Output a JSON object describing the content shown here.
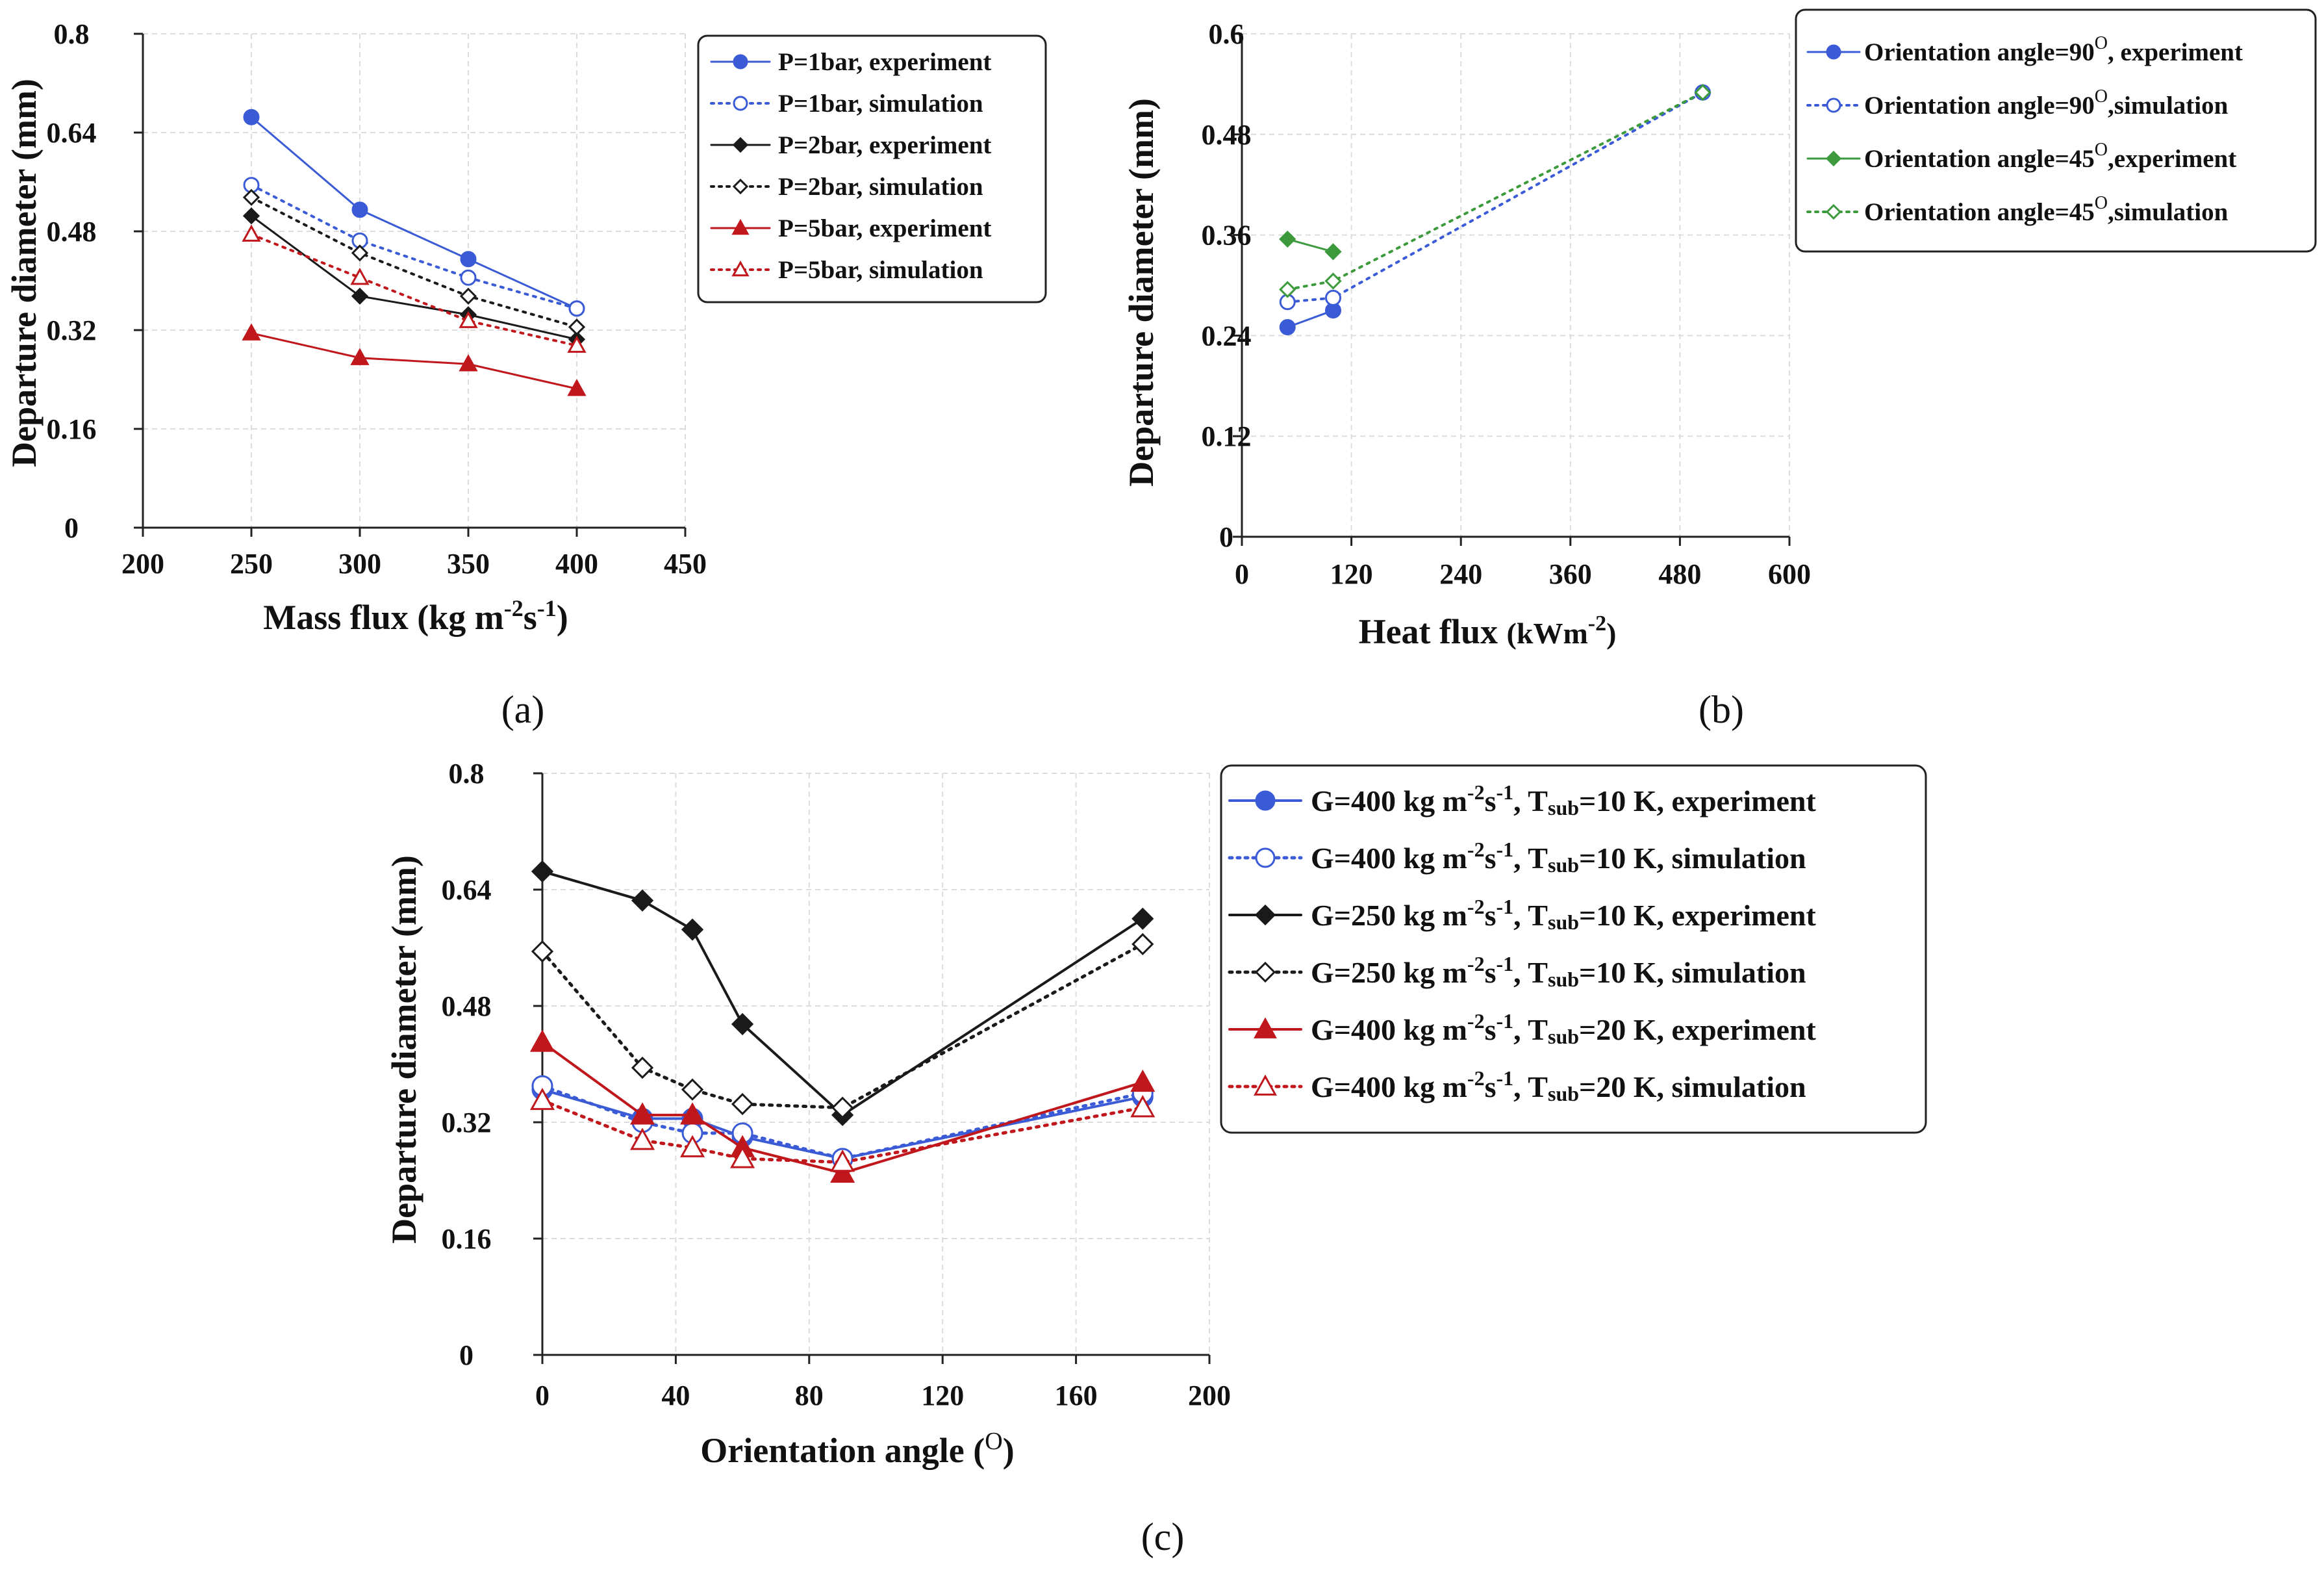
{
  "colors": {
    "blue": "#3b5bd6",
    "black": "#1a1a1a",
    "red": "#c0171c",
    "green": "#3c9a3c",
    "grid": "#dcdcdc"
  },
  "chart_data": [
    {
      "type": "line",
      "panel_label": "(a)",
      "xlabel": "Mass flux (kg m-2s-1)",
      "ylabel": "Departure diameter (mm)",
      "xlim": [
        200,
        450
      ],
      "ylim": [
        0,
        0.8
      ],
      "xticks": [
        "200",
        "250",
        "300",
        "350",
        "400",
        "450"
      ],
      "yticks": [
        "0",
        "0.16",
        "0.32",
        "0.48",
        "0.64",
        "0.8"
      ],
      "legend_position": "top-right",
      "x": [
        250,
        300,
        350,
        400
      ],
      "series": [
        {
          "name": "P=1bar, experiment",
          "values": [
            0.665,
            0.515,
            0.435,
            0.355
          ],
          "color": "blue",
          "dash": false,
          "marker": "circle",
          "filled": true
        },
        {
          "name": "P=1bar, simulation",
          "values": [
            0.555,
            0.465,
            0.405,
            0.355
          ],
          "color": "blue",
          "dash": true,
          "marker": "circle",
          "filled": false
        },
        {
          "name": "P=2bar, experiment",
          "values": [
            0.505,
            0.375,
            0.345,
            0.305
          ],
          "color": "black",
          "dash": false,
          "marker": "diamond",
          "filled": true
        },
        {
          "name": "P=2bar, simulation",
          "values": [
            0.535,
            0.445,
            0.375,
            0.325
          ],
          "color": "black",
          "dash": true,
          "marker": "diamond",
          "filled": false
        },
        {
          "name": "P=5bar, experiment",
          "values": [
            0.315,
            0.275,
            0.265,
            0.225
          ],
          "color": "red",
          "dash": false,
          "marker": "triangle",
          "filled": true
        },
        {
          "name": "P=5bar, simulation",
          "values": [
            0.475,
            0.405,
            0.335,
            0.295
          ],
          "color": "red",
          "dash": true,
          "marker": "triangle",
          "filled": false
        }
      ]
    },
    {
      "type": "line",
      "panel_label": "(b)",
      "xlabel": "Heat flux (kWm-2)",
      "ylabel": "Departure diameter (mm)",
      "xlim": [
        0,
        600
      ],
      "ylim": [
        0,
        0.6
      ],
      "xticks": [
        "0",
        "120",
        "240",
        "360",
        "480",
        "600"
      ],
      "yticks": [
        "0",
        "0.12",
        "0.24",
        "0.36",
        "0.48",
        "0.6"
      ],
      "legend_position": "top-right",
      "series": [
        {
          "name": "Orientation angle=90°, experiment",
          "x": [
            50,
            100
          ],
          "values": [
            0.25,
            0.27
          ],
          "color": "blue",
          "dash": false,
          "marker": "circle",
          "filled": true
        },
        {
          "name": "Orientation angle=90°, simulation",
          "x": [
            50,
            100,
            505
          ],
          "values": [
            0.28,
            0.285,
            0.53
          ],
          "color": "blue",
          "dash": true,
          "marker": "circle",
          "filled": false
        },
        {
          "name": "Orientation angle=45°, experiment",
          "x": [
            50,
            100
          ],
          "values": [
            0.355,
            0.34
          ],
          "color": "green",
          "dash": false,
          "marker": "diamond",
          "filled": true
        },
        {
          "name": "Orientation angle=45°, simulation",
          "x": [
            50,
            100,
            505
          ],
          "values": [
            0.295,
            0.305,
            0.53
          ],
          "color": "green",
          "dash": true,
          "marker": "diamond",
          "filled": false
        }
      ]
    },
    {
      "type": "line",
      "panel_label": "(c)",
      "xlabel": "Orientation angle (O)",
      "ylabel": "Departure diameter (mm)",
      "xlim": [
        0,
        200
      ],
      "ylim": [
        0,
        0.8
      ],
      "xticks": [
        "0",
        "40",
        "80",
        "120",
        "160",
        "200"
      ],
      "yticks": [
        "0",
        "0.16",
        "0.32",
        "0.48",
        "0.64",
        "0.8"
      ],
      "legend_position": "right",
      "x": [
        0,
        30,
        45,
        60,
        90,
        180
      ],
      "series": [
        {
          "name": "G=400 kg m-2s-1, Tsub=10 K, experiment",
          "values": [
            0.365,
            0.325,
            0.325,
            0.3,
            0.27,
            0.355
          ],
          "color": "blue",
          "dash": false,
          "marker": "circle",
          "filled": true
        },
        {
          "name": "G=400 kg m-2s-1, Tsub=10 K, simulation",
          "values": [
            0.37,
            0.32,
            0.305,
            0.305,
            0.27,
            0.36
          ],
          "color": "blue",
          "dash": true,
          "marker": "circle",
          "filled": false
        },
        {
          "name": "G=250 kg m-2s-1, Tsub=10 K, experiment",
          "values": [
            0.665,
            0.625,
            0.585,
            0.455,
            0.33,
            0.6
          ],
          "color": "black",
          "dash": false,
          "marker": "diamond",
          "filled": true
        },
        {
          "name": "G=250 kg m-2s-1, Tsub=10 K, simulation",
          "values": [
            0.555,
            0.395,
            0.365,
            0.345,
            0.34,
            0.565
          ],
          "color": "black",
          "dash": true,
          "marker": "diamond",
          "filled": false
        },
        {
          "name": "G=400 kg m-2s-1, Tsub=20 K, experiment",
          "values": [
            0.43,
            0.33,
            0.33,
            0.285,
            0.25,
            0.375
          ],
          "color": "red",
          "dash": false,
          "marker": "triangle",
          "filled": true
        },
        {
          "name": "G=400 kg m-2s-1, Tsub=20 K, simulation",
          "values": [
            0.35,
            0.295,
            0.285,
            0.27,
            0.265,
            0.34
          ],
          "color": "red",
          "dash": true,
          "marker": "triangle",
          "filled": false
        }
      ]
    }
  ],
  "axis_titles": {
    "a": {
      "x_main": "Mass flux (kg m",
      "x_sup1": "-2",
      "x_mid": "s",
      "x_sup2": "-1",
      "x_end": ")",
      "y": "Departure diameter (mm)"
    },
    "b": {
      "x_main": "Heat flux ",
      "x_unit": "(kWm",
      "x_sup": "-2",
      "x_end": ")",
      "y": "Departure diameter (mm)"
    },
    "c": {
      "x_main": "Orientation angle (",
      "x_sup": "O",
      "x_end": ")",
      "y": "Departure diameter (mm)"
    }
  },
  "legends": {
    "a": [
      {
        "text": "P=1bar, experiment"
      },
      {
        "text": "P=1bar, simulation"
      },
      {
        "text": "P=2bar, experiment"
      },
      {
        "text": "P=2bar, simulation"
      },
      {
        "text": "P=5bar, experiment"
      },
      {
        "text": "P=5bar, simulation"
      }
    ],
    "b": [
      {
        "pre": "Orientation angle=90",
        "sup": "O",
        "post": ", experiment"
      },
      {
        "pre": "Orientation angle=90",
        "sup": "O",
        "post": ",simulation"
      },
      {
        "pre": "Orientation angle=45",
        "sup": "O",
        "post": ",experiment"
      },
      {
        "pre": "Orientation angle=45",
        "sup": "O",
        "post": ",simulation"
      }
    ],
    "c": [
      {
        "g": "G=400 kg m",
        "s1": "-2",
        "s": "s",
        "s2": "-1",
        "t": ", T",
        "sub": "sub",
        "end": "=10 K, experiment"
      },
      {
        "g": "G=400 kg m",
        "s1": "-2",
        "s": "s",
        "s2": "-1",
        "t": ", T",
        "sub": "sub",
        "end": "=10 K, simulation"
      },
      {
        "g": "G=250 kg m",
        "s1": "-2",
        "s": "s",
        "s2": "-1",
        "t": ", T",
        "sub": "sub",
        "end": "=10 K, experiment"
      },
      {
        "g": "G=250 kg m",
        "s1": "-2",
        "s": "s",
        "s2": "-1",
        "t": ", T",
        "sub": "sub",
        "end": "=10 K, simulation"
      },
      {
        "g": "G=400 kg m",
        "s1": "-2",
        "s": "s",
        "s2": "-1",
        "t": ", T",
        "sub": "sub",
        "end": "=20 K, experiment"
      },
      {
        "g": "G=400 kg m",
        "s1": "-2",
        "s": "s",
        "s2": "-1",
        "t": ", T",
        "sub": "sub",
        "end": "=20 K, simulation"
      }
    ]
  }
}
